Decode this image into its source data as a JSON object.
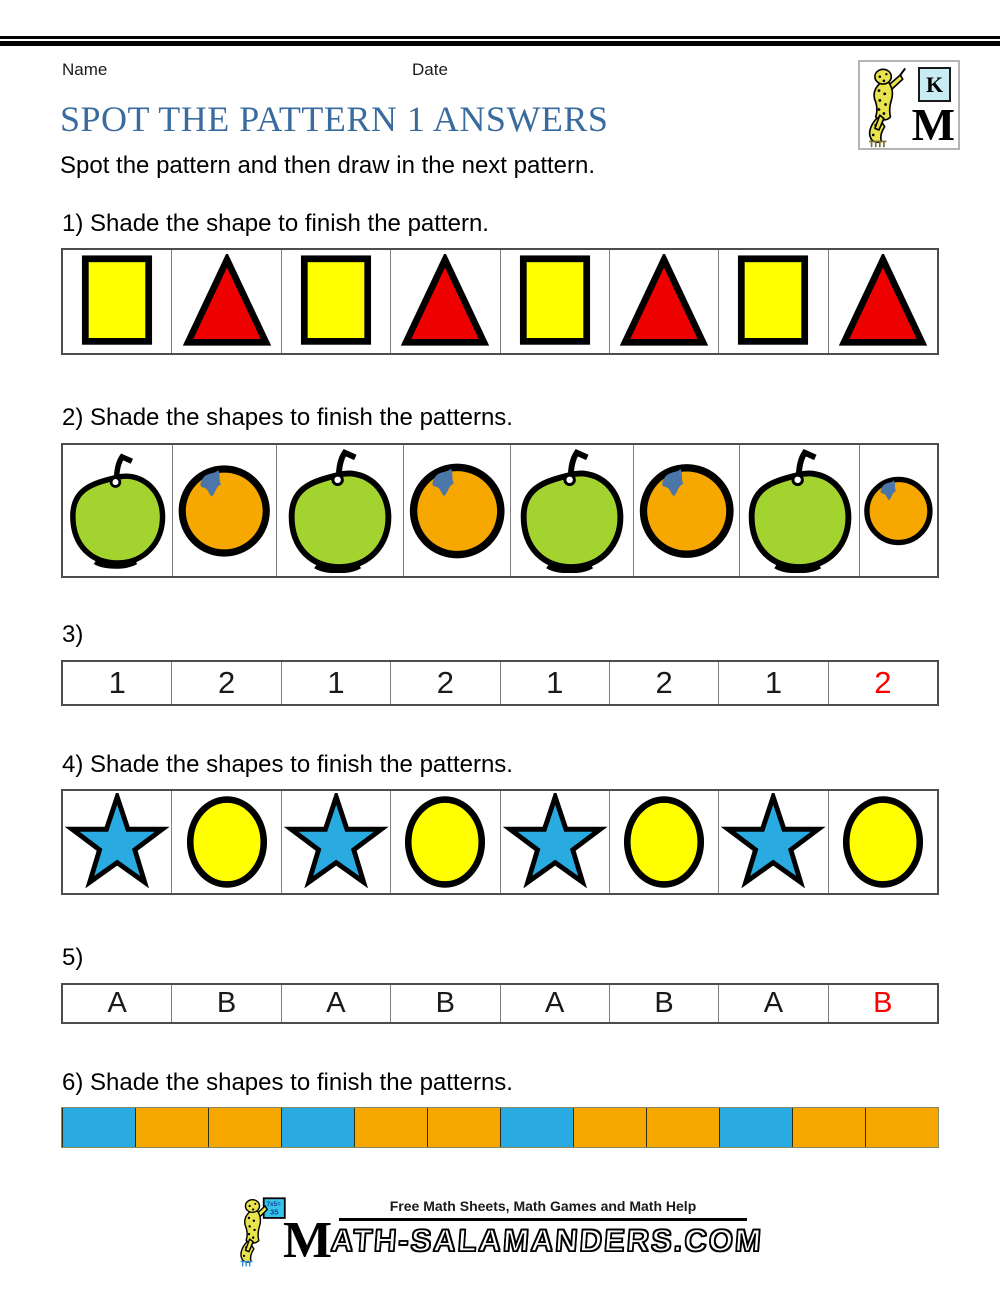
{
  "page": {
    "name_label": "Name",
    "date_label": "Date",
    "title": "SPOT THE PATTERN 1 ANSWERS",
    "subtitle": "Spot the pattern and then draw in the next pattern."
  },
  "corner_logo": {
    "k": "K",
    "m": "M"
  },
  "colors": {
    "title_blue": "#3A6B9E",
    "yellow": "#FFFF00",
    "red": "#EE0000",
    "apple_green": "#A3D32E",
    "orange": "#F6A800",
    "leaf_blue": "#4A76A8",
    "sky_blue": "#29ABE2",
    "answer_red": "#FF0000",
    "salamander_yellow": "#E8E44D",
    "board_cyan": "#35C4E8"
  },
  "questions": [
    {
      "label": "1) Shade the shape to finish the pattern.",
      "cells": [
        {
          "shape": "square"
        },
        {
          "shape": "triangle"
        },
        {
          "shape": "square"
        },
        {
          "shape": "triangle"
        },
        {
          "shape": "square"
        },
        {
          "shape": "triangle"
        },
        {
          "shape": "square"
        },
        {
          "shape": "triangle"
        }
      ]
    },
    {
      "label": "2) Shade the shapes to finish the patterns.",
      "cells": [
        {
          "shape": "apple",
          "w": 1.11
        },
        {
          "shape": "orange",
          "w": 1.04
        },
        {
          "shape": "apple",
          "w": 1.28
        },
        {
          "shape": "orange",
          "w": 1.08
        },
        {
          "shape": "apple",
          "w": 1.23
        },
        {
          "shape": "orange",
          "w": 1.07
        },
        {
          "shape": "apple",
          "w": 1.21
        },
        {
          "shape": "orange",
          "w": 0.78
        }
      ]
    },
    {
      "label": "3)",
      "cells": [
        {
          "text": "1"
        },
        {
          "text": "2"
        },
        {
          "text": "1"
        },
        {
          "text": "2"
        },
        {
          "text": "1"
        },
        {
          "text": "2"
        },
        {
          "text": "1"
        },
        {
          "text": "2",
          "answer": true
        }
      ]
    },
    {
      "label": "4) Shade the shapes to finish the patterns.",
      "cells": [
        {
          "shape": "star"
        },
        {
          "shape": "circle"
        },
        {
          "shape": "star"
        },
        {
          "shape": "circle"
        },
        {
          "shape": "star"
        },
        {
          "shape": "circle"
        },
        {
          "shape": "star"
        },
        {
          "shape": "circle"
        }
      ]
    },
    {
      "label": "5)",
      "cells": [
        {
          "text": "A"
        },
        {
          "text": "B"
        },
        {
          "text": "A"
        },
        {
          "text": "B"
        },
        {
          "text": "A"
        },
        {
          "text": "B"
        },
        {
          "text": "A"
        },
        {
          "text": "B",
          "answer": true
        }
      ]
    },
    {
      "label": "6) Shade the shapes to finish the patterns.",
      "cells": [
        {
          "color": "sky_blue"
        },
        {
          "color": "orange"
        },
        {
          "color": "orange"
        },
        {
          "color": "sky_blue"
        },
        {
          "color": "orange"
        },
        {
          "color": "orange"
        },
        {
          "color": "sky_blue"
        },
        {
          "color": "orange"
        },
        {
          "color": "orange"
        },
        {
          "color": "sky_blue"
        },
        {
          "color": "orange"
        },
        {
          "color": "orange"
        }
      ]
    }
  ],
  "footer": {
    "tagline": "Free Math Sheets, Math Games and Math Help",
    "logo_big_letter": "M",
    "logo_rest": "ATH-SALAMANDERS.COM",
    "board_line1": "7x5=",
    "board_line2": "35"
  }
}
